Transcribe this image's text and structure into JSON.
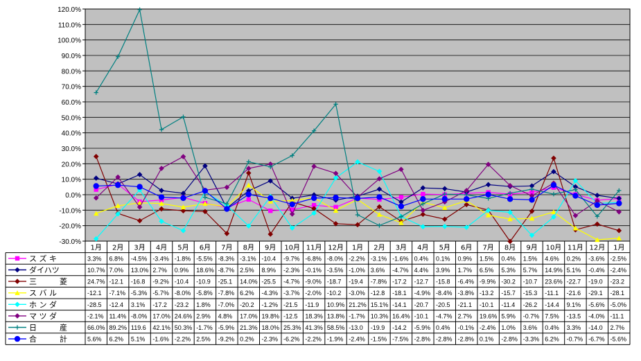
{
  "chart_data": {
    "type": "line",
    "title": "",
    "xlabel": "",
    "ylabel": "",
    "ylim": [
      -30,
      120
    ],
    "ytick_step": 10,
    "ytick_labels": [
      "120.0%",
      "110.0%",
      "100.0%",
      "90.0%",
      "80.0%",
      "70.0%",
      "60.0%",
      "50.0%",
      "40.0%",
      "30.0%",
      "20.0%",
      "10.0%",
      "0.0%",
      "-10.0%",
      "-20.0%",
      "-30.0%"
    ],
    "categories": [
      "1月",
      "2月",
      "3月",
      "4月",
      "5月",
      "6月",
      "7月",
      "8月",
      "9月",
      "10月",
      "11月",
      "12月",
      "1月",
      "2月",
      "3月",
      "4月",
      "5月",
      "6月",
      "7月",
      "8月",
      "9月",
      "10月",
      "11月",
      "12月",
      "1月"
    ],
    "plot_background": "#c0c0c0",
    "gridlines": true,
    "legend_placement": "data-table-below",
    "series": [
      {
        "name": "ス ズ キ",
        "color": "#ff00ff",
        "marker": "square",
        "values": [
          3.3,
          6.8,
          -4.5,
          -3.4,
          -1.8,
          -5.5,
          -8.3,
          -3.1,
          -10.4,
          -9.7,
          -6.8,
          -8.0,
          -2.2,
          -3.1,
          -1.6,
          0.4,
          0.1,
          0.9,
          1.5,
          0.4,
          1.5,
          4.6,
          0.2,
          -3.6,
          -2.5
        ],
        "labels": [
          "3.3%",
          "6.8%",
          "-4.5%",
          "-3.4%",
          "-1.8%",
          "-5.5%",
          "-8.3%",
          "-3.1%",
          "-10.4",
          "-9.7%",
          "-6.8%",
          "-8.0%",
          "-2.2%",
          "-3.1%",
          "-1.6%",
          "0.4%",
          "0.1%",
          "0.9%",
          "1.5%",
          "0.4%",
          "1.5%",
          "4.6%",
          "0.2%",
          "-3.6%",
          "-2.5%"
        ]
      },
      {
        "name": "ダイハツ",
        "color": "#000080",
        "marker": "diamond",
        "values": [
          10.7,
          7.0,
          13.0,
          2.7,
          0.9,
          18.6,
          -8.7,
          2.5,
          8.9,
          -2.3,
          -0.1,
          -3.5,
          -1.0,
          3.6,
          -4.7,
          4.4,
          3.9,
          1.7,
          6.5,
          5.3,
          5.7,
          14.9,
          5.1,
          -0.4,
          -2.4
        ],
        "labels": [
          "10.7%",
          "7.0%",
          "13.0%",
          "2.7%",
          "0.9%",
          "18.6%",
          "-8.7%",
          "2.5%",
          "8.9%",
          "-2.3%",
          "-0.1%",
          "-3.5%",
          "-1.0%",
          "3.6%",
          "-4.7%",
          "4.4%",
          "3.9%",
          "1.7%",
          "6.5%",
          "5.3%",
          "5.7%",
          "14.9%",
          "5.1%",
          "-0.4%",
          "-2.4%"
        ]
      },
      {
        "name": "三　　　菱",
        "color": "#800000",
        "marker": "diamond",
        "values": [
          24.7,
          -12.1,
          -16.8,
          -9.2,
          -10.4,
          -10.9,
          -25.1,
          14.0,
          -25.5,
          -4.7,
          -9.0,
          -18.7,
          -19.4,
          -7.8,
          -17.2,
          -12.7,
          -15.8,
          -6.4,
          -9.9,
          -30.2,
          -10.7,
          23.6,
          -22.7,
          -19.0,
          -23.2
        ],
        "labels": [
          "24.7%",
          "-12.1",
          "-16.8",
          "-9.2%",
          "-10.4",
          "-10.9",
          "-25.1",
          "14.0%",
          "-25.5",
          "-4.7%",
          "-9.0%",
          "-18.7",
          "-19.4",
          "-7.8%",
          "-17.2",
          "-12.7",
          "-15.8",
          "-6.4%",
          "-9.9%",
          "-30.2",
          "-10.7",
          "23.6%",
          "-22.7",
          "-19.0",
          "-23.2"
        ]
      },
      {
        "name": "ス バ ル",
        "color": "#ffff00",
        "marker": "triangle",
        "values": [
          -12.1,
          -7.1,
          -5.3,
          -5.7,
          -8.0,
          -5.8,
          -7.8,
          6.2,
          -4.3,
          -3.7,
          -2.0,
          -10.2,
          -3.0,
          -12.8,
          -18.1,
          -4.9,
          -8.4,
          -3.8,
          -13.2,
          -15.7,
          -15.3,
          -11.1,
          -21.6,
          -29.1,
          -28.1
        ],
        "labels": [
          "-12.1",
          "-7.1%",
          "-5.3%",
          "-5.7%",
          "-8.0%",
          "-5.8%",
          "-7.8%",
          "6.2%",
          "-4.3%",
          "-3.7%",
          "-2.0%",
          "-10.2",
          "-3.0%",
          "-12.8",
          "-18.1",
          "-4.9%",
          "-8.4%",
          "-3.8%",
          "-13.2",
          "-15.7",
          "-15.3",
          "-11.1",
          "-21.6",
          "-29.1",
          "-28.1"
        ]
      },
      {
        "name": "ホ ン ダ",
        "color": "#00ffff",
        "marker": "diamond",
        "values": [
          -28.5,
          -12.4,
          3.1,
          -17.2,
          -23.2,
          1.8,
          -7.0,
          -20.2,
          -1.2,
          -21.5,
          -11.9,
          10.9,
          21.2,
          15.1,
          -14.1,
          -20.7,
          -20.5,
          -21.1,
          -10.1,
          -11.4,
          -26.2,
          -14.4,
          9.1,
          -5.6,
          -5.0
        ],
        "labels": [
          "-28.5",
          "-12.4",
          "3.1%",
          "-17.2",
          "-23.2",
          "1.8%",
          "-7.0%",
          "-20.2",
          "-1.2%",
          "-21.5",
          "-11.9",
          "10.9%",
          "21.2%",
          "15.1%",
          "-14.1",
          "-20.7",
          "-20.5",
          "-21.1",
          "-10.1",
          "-11.4",
          "-26.2",
          "-14.4",
          "9.1%",
          "-5.6%",
          "-5.0%"
        ]
      },
      {
        "name": "マ ツ ダ",
        "color": "#800080",
        "marker": "diamond",
        "values": [
          -2.1,
          11.4,
          -8.0,
          17.0,
          24.6,
          2.9,
          4.8,
          17.0,
          19.8,
          -12.5,
          18.3,
          13.8,
          -1.7,
          10.3,
          16.4,
          -10.1,
          -4.7,
          2.7,
          19.6,
          5.9,
          -0.7,
          7.5,
          -13.5,
          -4.0,
          -11.1
        ],
        "labels": [
          "-2.1%",
          "11.4%",
          "-8.0%",
          "17.0%",
          "24.6%",
          "2.9%",
          "4.8%",
          "17.0%",
          "19.8%",
          "-12.5",
          "18.3%",
          "13.8%",
          "-1.7%",
          "10.3%",
          "16.4%",
          "-10.1",
          "-4.7%",
          "2.7%",
          "19.6%",
          "5.9%",
          "-0.7%",
          "7.5%",
          "-13.5",
          "-4.0%",
          "-11.1"
        ]
      },
      {
        "name": "日　　　産",
        "color": "#008080",
        "marker": "plus",
        "values": [
          66.0,
          89.2,
          119.6,
          42.1,
          50.3,
          -1.7,
          -5.9,
          21.3,
          18.0,
          25.3,
          41.3,
          58.5,
          -13.0,
          -19.9,
          -14.2,
          -5.9,
          0.4,
          -0.1,
          -2.4,
          1.0,
          3.6,
          0.4,
          3.3,
          -14.0,
          2.7
        ],
        "labels": [
          "66.0%",
          "89.2%",
          "119.6",
          "42.1%",
          "50.3%",
          "-1.7%",
          "-5.9%",
          "21.3%",
          "18.0%",
          "25.3%",
          "41.3%",
          "58.5%",
          "-13.0",
          "-19.9",
          "-14.2",
          "-5.9%",
          "0.4%",
          "-0.1%",
          "-2.4%",
          "1.0%",
          "3.6%",
          "0.4%",
          "3.3%",
          "-14.0",
          "2.7%"
        ]
      },
      {
        "name": "合　　　計",
        "color": "#0000ff",
        "marker": "circle",
        "values": [
          5.6,
          6.2,
          5.1,
          -1.6,
          -2.2,
          2.5,
          -9.2,
          0.2,
          -2.3,
          -6.2,
          -2.2,
          -1.9,
          -2.4,
          -1.5,
          -7.5,
          -2.8,
          -2.8,
          -2.8,
          0.1,
          -2.8,
          -3.3,
          6.2,
          -0.7,
          -6.7,
          -5.6
        ],
        "labels": [
          "5.6%",
          "6.2%",
          "5.1%",
          "-1.6%",
          "-2.2%",
          "2.5%",
          "-9.2%",
          "0.2%",
          "-2.3%",
          "-6.2%",
          "-2.2%",
          "-1.9%",
          "-2.4%",
          "-1.5%",
          "-7.5%",
          "-2.8%",
          "-2.8%",
          "-2.8%",
          "0.1%",
          "-2.8%",
          "-3.3%",
          "6.2%",
          "-0.7%",
          "-6.7%",
          "-5.6%"
        ]
      }
    ]
  }
}
